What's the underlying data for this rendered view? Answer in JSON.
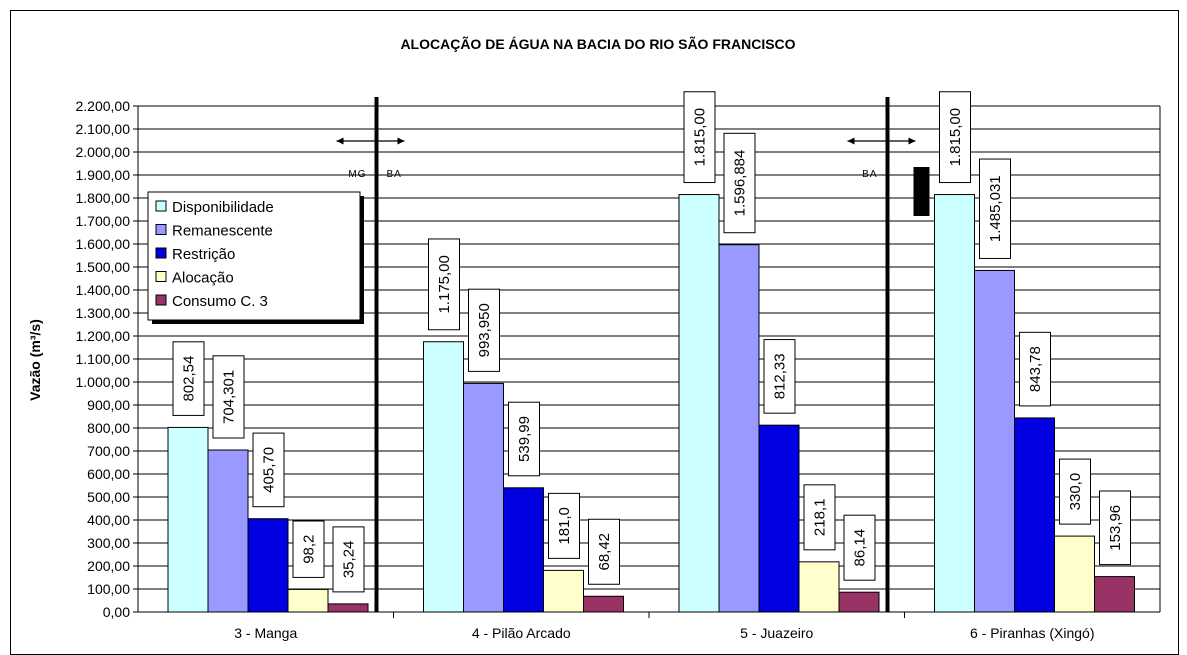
{
  "chart_data": {
    "type": "bar",
    "title": "ALOCAÇÃO DE ÁGUA NA BACIA DO RIO SÃO FRANCISCO",
    "ylabel": "Vazão (m³/s)",
    "xlabel": "",
    "ylim": [
      0,
      2200
    ],
    "yticks": [
      "0,00",
      "100,00",
      "200,00",
      "300,00",
      "400,00",
      "500,00",
      "600,00",
      "700,00",
      "800,00",
      "900,00",
      "1.000,00",
      "1.100,00",
      "1.200,00",
      "1.300,00",
      "1.400,00",
      "1.500,00",
      "1.600,00",
      "1.700,00",
      "1.800,00",
      "1.900,00",
      "2.000,00",
      "2.100,00",
      "2.200,00"
    ],
    "grid": true,
    "legend_position": "left",
    "categories": [
      "3 - Manga",
      "4 - Pilão Arcado",
      "5 - Juazeiro",
      "6  - Piranhas (Xingó)"
    ],
    "series": [
      {
        "name": "Disponibilidade",
        "color": "#ccffff",
        "values": [
          802.54,
          1175.0,
          1815.0,
          1815.0
        ],
        "labels": [
          "802,54",
          "1.175,00",
          "1.815,00",
          "1.815,00"
        ]
      },
      {
        "name": "Remanescente",
        "color": "#9999ff",
        "values": [
          704.301,
          993.95,
          1596.884,
          1485.031
        ],
        "labels": [
          "704,301",
          "993,950",
          "1.596,884",
          "1.485,031"
        ]
      },
      {
        "name": "Restrição",
        "color": "#0000e0",
        "values": [
          405.7,
          539.99,
          812.33,
          843.78
        ],
        "labels": [
          "405,70",
          "539,99",
          "812,33",
          "843,78"
        ]
      },
      {
        "name": "Alocação",
        "color": "#ffffcc",
        "values": [
          98.2,
          181.0,
          218.1,
          330.0
        ],
        "labels": [
          "98,2",
          "181,0",
          "218,1",
          "330,0"
        ]
      },
      {
        "name": "Consumo C. 3",
        "color": "#993366",
        "values": [
          35.24,
          68.42,
          86.14,
          153.96
        ],
        "labels": [
          "35,24",
          "68,42",
          "86,14",
          "153,96"
        ]
      }
    ],
    "annotations": [
      {
        "text": "MG",
        "side": "left",
        "boundary": 1
      },
      {
        "text": "BA",
        "side": "right",
        "boundary": 1
      },
      {
        "text": "BA",
        "side": "left",
        "boundary": 3
      }
    ]
  }
}
